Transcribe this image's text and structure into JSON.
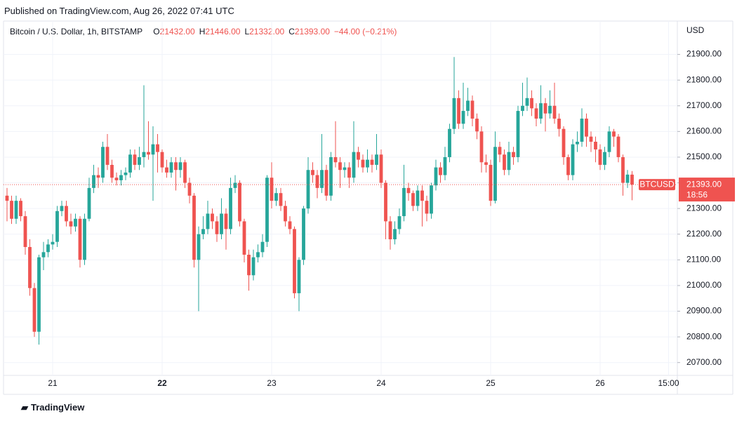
{
  "header": {
    "published": "Published on TradingView.com, Aug 26, 2022 07:41 UTC"
  },
  "legend": {
    "symbol": "Bitcoin / U.S. Dollar, 1h, BITSTAMP",
    "items": [
      {
        "letter": "O",
        "value": "21432.00"
      },
      {
        "letter": "H",
        "value": "21446.00"
      },
      {
        "letter": "L",
        "value": "21332.00"
      },
      {
        "letter": "C",
        "value": "21393.00"
      }
    ],
    "change": "−44.00 (−0.21%)"
  },
  "price_tag": {
    "symbol": "BTCUSD",
    "price": "21393.00",
    "countdown": "18:56"
  },
  "footer": {
    "brand": "TradingView"
  },
  "chart_data": {
    "type": "candlestick",
    "y_axis_label": "USD",
    "up_color": "#26a69a",
    "down_color": "#ef5350",
    "ylim": [
      20650,
      22030
    ],
    "yticks": [
      {
        "value": 20700,
        "label": "20700.00"
      },
      {
        "value": 20800,
        "label": "20800.00"
      },
      {
        "value": 20900,
        "label": "20900.00"
      },
      {
        "value": 21000,
        "label": "21000.00"
      },
      {
        "value": 21100,
        "label": "21100.00"
      },
      {
        "value": 21200,
        "label": "21200.00"
      },
      {
        "value": 21300,
        "label": "21300.00"
      },
      {
        "value": 21400,
        "label": "21400.00"
      },
      {
        "value": 21500,
        "label": "21500.00"
      },
      {
        "value": 21600,
        "label": "21600.00"
      },
      {
        "value": 21700,
        "label": "21700.00"
      },
      {
        "value": 21800,
        "label": "21800.00"
      },
      {
        "value": 21900,
        "label": "21900.00"
      }
    ],
    "categories": [
      null,
      null,
      null,
      null,
      null,
      null,
      null,
      null,
      null,
      null,
      "21",
      null,
      null,
      null,
      null,
      null,
      null,
      null,
      null,
      null,
      null,
      null,
      null,
      null,
      null,
      null,
      null,
      null,
      null,
      null,
      null,
      null,
      null,
      null,
      "22",
      null,
      null,
      null,
      null,
      null,
      null,
      null,
      null,
      null,
      null,
      null,
      null,
      null,
      null,
      null,
      null,
      null,
      null,
      null,
      null,
      null,
      null,
      null,
      "23",
      null,
      null,
      null,
      null,
      null,
      null,
      null,
      null,
      null,
      null,
      null,
      null,
      null,
      null,
      null,
      null,
      null,
      null,
      null,
      null,
      null,
      null,
      null,
      "24",
      null,
      null,
      null,
      null,
      null,
      null,
      null,
      null,
      null,
      null,
      null,
      null,
      null,
      null,
      null,
      null,
      null,
      null,
      null,
      null,
      null,
      null,
      null,
      "25",
      null,
      null,
      null,
      null,
      null,
      null,
      null,
      null,
      null,
      null,
      null,
      null,
      null,
      null,
      null,
      null,
      null,
      null,
      null,
      null,
      null,
      null,
      null,
      "26",
      null,
      null,
      null,
      null,
      null,
      null,
      null,
      null,
      null,
      null,
      null,
      null,
      null,
      null,
      "15:00"
    ],
    "candles": [
      [
        21350,
        21380,
        21250,
        21330
      ],
      [
        21330,
        21350,
        21240,
        21260
      ],
      [
        21260,
        21350,
        21240,
        21330
      ],
      [
        21330,
        21340,
        21250,
        21270
      ],
      [
        21270,
        21290,
        21120,
        21150
      ],
      [
        21150,
        21180,
        20960,
        20990
      ],
      [
        20990,
        21010,
        20800,
        20820
      ],
      [
        20820,
        21120,
        20770,
        21110
      ],
      [
        21110,
        21170,
        21060,
        21130
      ],
      [
        21130,
        21180,
        21110,
        21160
      ],
      [
        21160,
        21200,
        21140,
        21170
      ],
      [
        21170,
        21310,
        21150,
        21290
      ],
      [
        21290,
        21330,
        21270,
        21310
      ],
      [
        21310,
        21330,
        21230,
        21250
      ],
      [
        21250,
        21280,
        21200,
        21230
      ],
      [
        21230,
        21280,
        21210,
        21260
      ],
      [
        21260,
        21270,
        21070,
        21100
      ],
      [
        21100,
        21280,
        21080,
        21260
      ],
      [
        21260,
        21420,
        21250,
        21380
      ],
      [
        21380,
        21470,
        21360,
        21430
      ],
      [
        21430,
        21460,
        21380,
        21420
      ],
      [
        21420,
        21560,
        21400,
        21540
      ],
      [
        21540,
        21590,
        21450,
        21470
      ],
      [
        21470,
        21490,
        21400,
        21420
      ],
      [
        21420,
        21440,
        21390,
        21410
      ],
      [
        21410,
        21450,
        21390,
        21430
      ],
      [
        21430,
        21460,
        21410,
        21440
      ],
      [
        21440,
        21530,
        21420,
        21510
      ],
      [
        21510,
        21530,
        21450,
        21470
      ],
      [
        21470,
        21540,
        21450,
        21500
      ],
      [
        21500,
        21780,
        21460,
        21520
      ],
      [
        21520,
        21640,
        21490,
        21510
      ],
      [
        21510,
        21620,
        21330,
        21550
      ],
      [
        21550,
        21590,
        21440,
        21520
      ],
      [
        21520,
        21530,
        21440,
        21460
      ],
      [
        21460,
        21490,
        21420,
        21440
      ],
      [
        21440,
        21500,
        21420,
        21480
      ],
      [
        21480,
        21500,
        21370,
        21450
      ],
      [
        21450,
        21500,
        21420,
        21480
      ],
      [
        21480,
        21490,
        21380,
        21400
      ],
      [
        21400,
        21420,
        21320,
        21350
      ],
      [
        21350,
        21360,
        21070,
        21100
      ],
      [
        21100,
        21230,
        20900,
        21200
      ],
      [
        21200,
        21270,
        21180,
        21220
      ],
      [
        21220,
        21330,
        21200,
        21280
      ],
      [
        21280,
        21300,
        21220,
        21250
      ],
      [
        21250,
        21270,
        21170,
        21200
      ],
      [
        21200,
        21340,
        21180,
        21280
      ],
      [
        21280,
        21300,
        21140,
        21220
      ],
      [
        21220,
        21420,
        21200,
        21380
      ],
      [
        21380,
        21430,
        21360,
        21400
      ],
      [
        21400,
        21410,
        21230,
        21250
      ],
      [
        21250,
        21260,
        21090,
        21120
      ],
      [
        21120,
        21140,
        20980,
        21040
      ],
      [
        21040,
        21140,
        21020,
        21110
      ],
      [
        21110,
        21160,
        21090,
        21130
      ],
      [
        21130,
        21200,
        21110,
        21170
      ],
      [
        21170,
        21430,
        21150,
        21420
      ],
      [
        21420,
        21480,
        21300,
        21330
      ],
      [
        21330,
        21380,
        21310,
        21360
      ],
      [
        21360,
        21380,
        21290,
        21310
      ],
      [
        21310,
        21330,
        21230,
        21250
      ],
      [
        21250,
        21270,
        21200,
        21220
      ],
      [
        21220,
        21230,
        20950,
        20970
      ],
      [
        20970,
        21110,
        20900,
        21100
      ],
      [
        21100,
        21310,
        21080,
        21300
      ],
      [
        21300,
        21500,
        21280,
        21450
      ],
      [
        21450,
        21480,
        21400,
        21430
      ],
      [
        21430,
        21450,
        21340,
        21380
      ],
      [
        21380,
        21590,
        21360,
        21450
      ],
      [
        21450,
        21470,
        21330,
        21350
      ],
      [
        21350,
        21520,
        21330,
        21500
      ],
      [
        21500,
        21640,
        21460,
        21480
      ],
      [
        21480,
        21500,
        21380,
        21450
      ],
      [
        21450,
        21480,
        21420,
        21460
      ],
      [
        21460,
        21480,
        21380,
        21420
      ],
      [
        21420,
        21640,
        21400,
        21520
      ],
      [
        21520,
        21540,
        21460,
        21490
      ],
      [
        21490,
        21510,
        21440,
        21460
      ],
      [
        21460,
        21530,
        21440,
        21490
      ],
      [
        21490,
        21510,
        21440,
        21470
      ],
      [
        21470,
        21590,
        21450,
        21510
      ],
      [
        21510,
        21530,
        21380,
        21400
      ],
      [
        21400,
        21410,
        21180,
        21250
      ],
      [
        21250,
        21270,
        21140,
        21180
      ],
      [
        21180,
        21250,
        21160,
        21220
      ],
      [
        21220,
        21300,
        21200,
        21270
      ],
      [
        21270,
        21470,
        21250,
        21380
      ],
      [
        21380,
        21400,
        21330,
        21360
      ],
      [
        21360,
        21370,
        21290,
        21310
      ],
      [
        21310,
        21390,
        21290,
        21370
      ],
      [
        21370,
        21390,
        21230,
        21330
      ],
      [
        21330,
        21350,
        21250,
        21280
      ],
      [
        21280,
        21400,
        21260,
        21390
      ],
      [
        21390,
        21490,
        21370,
        21460
      ],
      [
        21460,
        21480,
        21400,
        21430
      ],
      [
        21430,
        21540,
        21410,
        21500
      ],
      [
        21500,
        21630,
        21480,
        21610
      ],
      [
        21610,
        21890,
        21590,
        21730
      ],
      [
        21730,
        21760,
        21610,
        21630
      ],
      [
        21630,
        21790,
        21610,
        21680
      ],
      [
        21680,
        21770,
        21660,
        21720
      ],
      [
        21720,
        21740,
        21620,
        21650
      ],
      [
        21650,
        21670,
        21570,
        21600
      ],
      [
        21600,
        21620,
        21440,
        21480
      ],
      [
        21480,
        21510,
        21440,
        21470
      ],
      [
        21470,
        21490,
        21310,
        21330
      ],
      [
        21330,
        21600,
        21320,
        21540
      ],
      [
        21540,
        21560,
        21480,
        21510
      ],
      [
        21510,
        21530,
        21430,
        21450
      ],
      [
        21450,
        21560,
        21430,
        21520
      ],
      [
        21520,
        21540,
        21470,
        21500
      ],
      [
        21500,
        21700,
        21480,
        21680
      ],
      [
        21680,
        21790,
        21660,
        21700
      ],
      [
        21700,
        21810,
        21680,
        21730
      ],
      [
        21730,
        21760,
        21660,
        21690
      ],
      [
        21690,
        21710,
        21620,
        21650
      ],
      [
        21650,
        21780,
        21630,
        21710
      ],
      [
        21710,
        21730,
        21600,
        21670
      ],
      [
        21670,
        21760,
        21650,
        21700
      ],
      [
        21700,
        21790,
        21630,
        21650
      ],
      [
        21650,
        21670,
        21580,
        21610
      ],
      [
        21610,
        21620,
        21470,
        21500
      ],
      [
        21500,
        21510,
        21410,
        21430
      ],
      [
        21430,
        21570,
        21410,
        21550
      ],
      [
        21550,
        21600,
        21520,
        21560
      ],
      [
        21560,
        21690,
        21540,
        21650
      ],
      [
        21650,
        21670,
        21540,
        21580
      ],
      [
        21580,
        21600,
        21520,
        21560
      ],
      [
        21560,
        21580,
        21480,
        21530
      ],
      [
        21530,
        21550,
        21450,
        21470
      ],
      [
        21470,
        21540,
        21450,
        21520
      ],
      [
        21520,
        21620,
        21500,
        21600
      ],
      [
        21600,
        21610,
        21540,
        21580
      ],
      [
        21580,
        21590,
        21480,
        21500
      ],
      [
        21500,
        21510,
        21350,
        21400
      ],
      [
        21400,
        21450,
        21380,
        21432
      ],
      [
        21432,
        21446,
        21332,
        21393
      ],
      null,
      null,
      null,
      null,
      null,
      null,
      null,
      null
    ]
  }
}
